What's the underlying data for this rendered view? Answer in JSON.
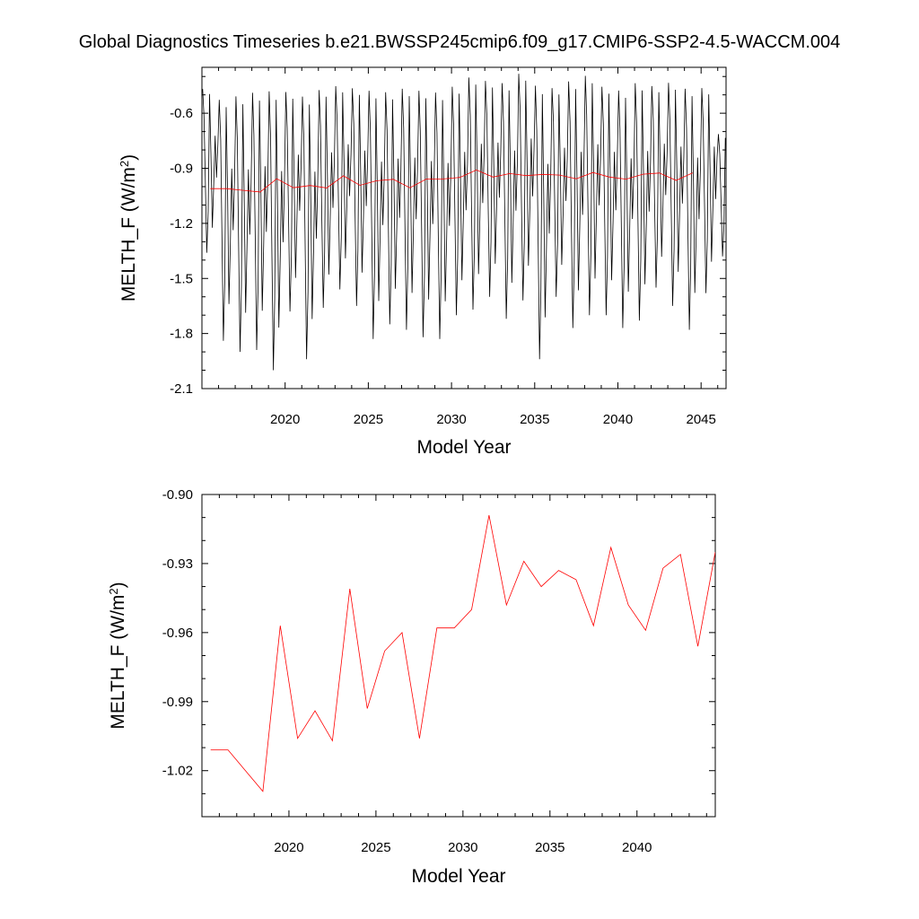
{
  "title": "Global Diagnostics Timeseries b.e21.BWSSP245cmip6.f09_g17.CMIP6-SSP2-4.5-WACCM.004",
  "chart_data": [
    {
      "type": "line",
      "xlabel": "Model Year",
      "ylabel": "MELTH_F (W/m",
      "ylabel_sup": "2",
      "ylabel_suffix": ")",
      "xlim": [
        2015,
        2046.5
      ],
      "ylim": [
        -2.1,
        -0.35
      ],
      "x_ticks": [
        "2020",
        "2025",
        "2030",
        "2035",
        "2040",
        "2045"
      ],
      "y_ticks": [
        "-0.6",
        "-0.9",
        "-1.2",
        "-1.5",
        "-1.8",
        "-2.1"
      ],
      "series": [
        {
          "color": "#000000",
          "monthly_cycles": [
            {
              "year": 2015,
              "min": -1.36,
              "max": -0.45
            },
            {
              "year": 2016,
              "min": -1.84,
              "max": -0.5
            },
            {
              "year": 2017,
              "min": -1.9,
              "max": -0.48
            },
            {
              "year": 2018,
              "min": -1.89,
              "max": -0.46
            },
            {
              "year": 2019,
              "min": -2.0,
              "max": -0.45
            },
            {
              "year": 2020,
              "min": -1.68,
              "max": -0.46
            },
            {
              "year": 2021,
              "min": -1.94,
              "max": -0.48
            },
            {
              "year": 2022,
              "min": -1.66,
              "max": -0.45
            },
            {
              "year": 2023,
              "min": -1.56,
              "max": -0.43
            },
            {
              "year": 2024,
              "min": -1.65,
              "max": -0.44
            },
            {
              "year": 2025,
              "min": -1.83,
              "max": -0.45
            },
            {
              "year": 2026,
              "min": -1.75,
              "max": -0.46
            },
            {
              "year": 2027,
              "min": -1.78,
              "max": -0.44
            },
            {
              "year": 2028,
              "min": -1.82,
              "max": -0.45
            },
            {
              "year": 2029,
              "min": -1.83,
              "max": -0.46
            },
            {
              "year": 2030,
              "min": -1.7,
              "max": -0.43
            },
            {
              "year": 2031,
              "min": -1.67,
              "max": -0.38
            },
            {
              "year": 2032,
              "min": -1.6,
              "max": -0.4
            },
            {
              "year": 2033,
              "min": -1.72,
              "max": -0.41
            },
            {
              "year": 2034,
              "min": -1.62,
              "max": -0.36
            },
            {
              "year": 2035,
              "min": -1.94,
              "max": -0.42
            },
            {
              "year": 2036,
              "min": -1.6,
              "max": -0.44
            },
            {
              "year": 2037,
              "min": -1.77,
              "max": -0.4
            },
            {
              "year": 2038,
              "min": -1.7,
              "max": -0.37
            },
            {
              "year": 2039,
              "min": -1.7,
              "max": -0.43
            },
            {
              "year": 2040,
              "min": -1.77,
              "max": -0.45
            },
            {
              "year": 2041,
              "min": -1.73,
              "max": -0.41
            },
            {
              "year": 2042,
              "min": -1.55,
              "max": -0.43
            },
            {
              "year": 2043,
              "min": -1.65,
              "max": -0.41
            },
            {
              "year": 2044,
              "min": -1.78,
              "max": -0.44
            },
            {
              "year": 2045,
              "min": -1.58,
              "max": -0.44
            },
            {
              "year": 2046,
              "min": -1.38,
              "max": -0.7
            }
          ]
        },
        {
          "color": "#ff0000",
          "x": [
            2015.5,
            2016.5,
            2017.5,
            2018.5,
            2019.5,
            2020.5,
            2021.5,
            2022.5,
            2023.5,
            2024.5,
            2025.5,
            2026.5,
            2027.5,
            2028.5,
            2029.5,
            2030.5,
            2031.5,
            2032.5,
            2033.5,
            2034.5,
            2035.5,
            2036.5,
            2037.5,
            2038.5,
            2039.5,
            2040.5,
            2041.5,
            2042.5,
            2043.5,
            2044.5
          ],
          "y": [
            -1.011,
            -1.011,
            -1.02,
            -1.029,
            -0.957,
            -1.006,
            -0.994,
            -1.007,
            -0.941,
            -0.993,
            -0.968,
            -0.96,
            -1.006,
            -0.958,
            -0.958,
            -0.95,
            -0.909,
            -0.948,
            -0.929,
            -0.94,
            -0.933,
            -0.937,
            -0.957,
            -0.923,
            -0.948,
            -0.959,
            -0.932,
            -0.926,
            -0.966,
            -0.925
          ]
        }
      ]
    },
    {
      "type": "line",
      "xlabel": "Model Year",
      "ylabel": "MELTH_F (W/m",
      "ylabel_sup": "2",
      "ylabel_suffix": ")",
      "xlim": [
        2015,
        2044.5
      ],
      "ylim": [
        -1.04,
        -0.9
      ],
      "x_ticks": [
        "2020",
        "2025",
        "2030",
        "2035",
        "2040"
      ],
      "y_ticks": [
        "-0.90",
        "-0.93",
        "-0.96",
        "-0.99",
        "-1.02"
      ],
      "series": [
        {
          "color": "#ff0000",
          "x": [
            2015.5,
            2016.5,
            2017.5,
            2018.5,
            2019.5,
            2020.5,
            2021.5,
            2022.5,
            2023.5,
            2024.5,
            2025.5,
            2026.5,
            2027.5,
            2028.5,
            2029.5,
            2030.5,
            2031.5,
            2032.5,
            2033.5,
            2034.5,
            2035.5,
            2036.5,
            2037.5,
            2038.5,
            2039.5,
            2040.5,
            2041.5,
            2042.5,
            2043.5,
            2044.5
          ],
          "y": [
            -1.011,
            -1.011,
            -1.02,
            -1.029,
            -0.957,
            -1.006,
            -0.994,
            -1.007,
            -0.941,
            -0.993,
            -0.968,
            -0.96,
            -1.006,
            -0.958,
            -0.958,
            -0.95,
            -0.909,
            -0.948,
            -0.929,
            -0.94,
            -0.933,
            -0.937,
            -0.957,
            -0.923,
            -0.948,
            -0.959,
            -0.932,
            -0.926,
            -0.966,
            -0.925
          ]
        }
      ]
    }
  ]
}
